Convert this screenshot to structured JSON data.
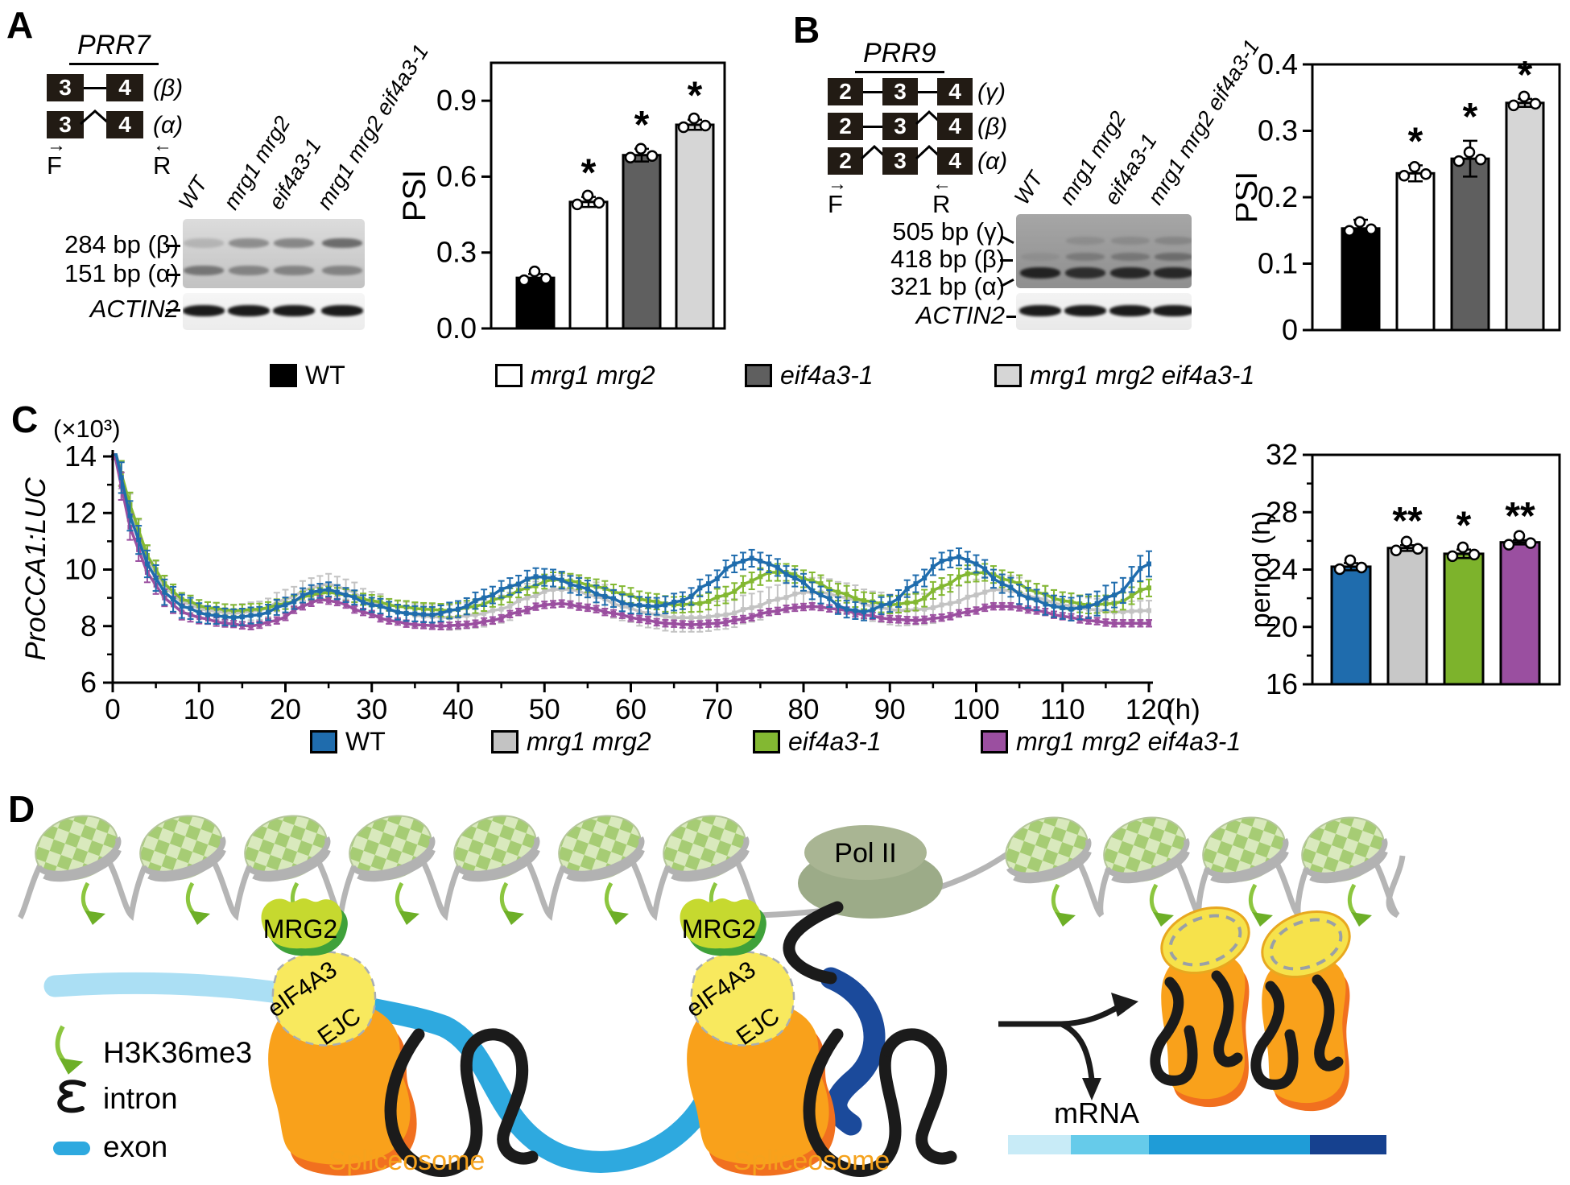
{
  "figure": {
    "panel_labels": {
      "A": "A",
      "B": "B",
      "C": "C",
      "D": "D"
    }
  },
  "panelA": {
    "gene": "PRR7",
    "isoform_rows": [
      {
        "exons": [
          "3",
          "4"
        ],
        "label": "(β)"
      },
      {
        "exons": [
          "3",
          "4"
        ],
        "label": "(α)"
      }
    ],
    "primer_f": "F",
    "primer_r": "R",
    "lanes": [
      "WT",
      "mrg1 mrg2",
      "eif4a3-1",
      "mrg1 mrg2 eif4a3-1"
    ],
    "band_labels": [
      "284 bp (β)",
      "151 bp (α)"
    ],
    "loading_control": "ACTIN2"
  },
  "panelB": {
    "gene": "PRR9",
    "isoform_rows": [
      {
        "exons": [
          "2",
          "3",
          "4"
        ],
        "label": "(γ)"
      },
      {
        "exons": [
          "2",
          "3",
          "4"
        ],
        "label": "(β)"
      },
      {
        "exons": [
          "2",
          "3",
          "4"
        ],
        "label": "(α)"
      }
    ],
    "primer_f": "F",
    "primer_r": "R",
    "lanes": [
      "WT",
      "mrg1 mrg2",
      "eif4a3-1",
      "mrg1 mrg2 eif4a3-1"
    ],
    "band_labels": [
      "505 bp (γ)",
      "418 bp (β)",
      "321 bp (α)"
    ],
    "loading_control": "ACTIN2"
  },
  "legend_ab": {
    "items": [
      {
        "label": "WT",
        "color": "#000000"
      },
      {
        "label": "mrg1 mrg2",
        "color": "#ffffff"
      },
      {
        "label": "eif4a3-1",
        "color": "#5f5f5f"
      },
      {
        "label": "mrg1 mrg2 eif4a3-1",
        "color": "#d6d6d6"
      }
    ]
  },
  "panelC": {
    "legend": {
      "items": [
        {
          "label": "WT",
          "color": "#1f6cad"
        },
        {
          "label": "mrg1 mrg2",
          "color": "#c3c3c3"
        },
        {
          "label": "eif4a3-1",
          "color": "#83b832"
        },
        {
          "label": "mrg1 mrg2 eif4a3-1",
          "color": "#9b4fa0"
        }
      ]
    }
  },
  "panelD": {
    "labels": {
      "mrg2": "MRG2",
      "eif4a3": "eIF4A3",
      "ejc": "EJC",
      "polii": "Pol II",
      "spliceosome1": "Spliceosome",
      "spliceosome2": "Spliceosome",
      "mrna": "mRNA"
    },
    "legend": [
      {
        "icon": "h3k36me3-arrow",
        "label": "H3K36me3"
      },
      {
        "icon": "intron-squiggle",
        "label": "intron"
      },
      {
        "icon": "exon-bar",
        "label": "exon"
      }
    ],
    "colors": {
      "spliceosome": "#f9a11b",
      "spliceosome_shadow": "#f1701f",
      "spliceosome_label": "#f5a21d",
      "mrg2": "#c6d92f",
      "mrg2_shadow": "#3fa13a",
      "eif4a3": "#f8e95e",
      "ejc_yellow": "#f6e24b",
      "polii_fill": "#a9b593",
      "polii_fill2": "#9cab88",
      "polii_stroke": "#50714b",
      "dna": "#b5b5b5",
      "nuc_light": "#d9e9bd",
      "nuc_mid": "#a6cc74",
      "h3k36me3": "#8cc63f",
      "h3k36me3_head": "#6daf27",
      "intron": "#1b1b1b",
      "exon_light": "#abdff4",
      "exon_mid": "#2ea9df",
      "exon_navy": "#1b4a9b",
      "mrna_seg1": "#c8ebf7",
      "mrna_seg2": "#66cbea",
      "mrna_seg3": "#1f9cd7",
      "mrna_seg4": "#16418f"
    }
  },
  "chart_data": [
    {
      "type": "bar",
      "id": "psiA",
      "title": "PRR7 PSI",
      "ylabel": "PSI",
      "ylim": [
        0,
        1.05
      ],
      "yticks": [
        0,
        0.3,
        0.6,
        0.9
      ],
      "categories": [
        "WT",
        "mrg1 mrg2",
        "eif4a3-1",
        "mrg1 mrg2 eif4a3-1"
      ],
      "values": [
        0.2,
        0.5,
        0.685,
        0.805
      ],
      "errors": [
        0.015,
        0.02,
        0.025,
        0.02
      ],
      "sig": [
        "",
        "*",
        "*",
        "*"
      ],
      "colors": [
        "#000000",
        "#ffffff",
        "#5f5f5f",
        "#d6d6d6"
      ]
    },
    {
      "type": "bar",
      "id": "psiB",
      "title": "PRR9 PSI",
      "ylabel": "PSI",
      "ylim": [
        0,
        0.4
      ],
      "yticks": [
        0,
        0.1,
        0.2,
        0.3,
        0.4
      ],
      "categories": [
        "WT",
        "mrg1 mrg2",
        "eif4a3-1",
        "mrg1 mrg2 eif4a3-1"
      ],
      "values": [
        0.153,
        0.236,
        0.258,
        0.342
      ],
      "errors": [
        0.013,
        0.012,
        0.027,
        0.006
      ],
      "sig": [
        "",
        "*",
        "*",
        "*"
      ],
      "colors": [
        "#000000",
        "#ffffff",
        "#5f5f5f",
        "#d6d6d6"
      ]
    },
    {
      "type": "line",
      "id": "luc",
      "ylabel": "ProCCA1:LUC",
      "y_unit": "(×10³)",
      "xlabel": "(h)",
      "xlim": [
        0,
        120
      ],
      "xticks": [
        0,
        10,
        20,
        30,
        40,
        50,
        60,
        70,
        80,
        90,
        100,
        110,
        120
      ],
      "ylim": [
        6,
        14
      ],
      "yticks": [
        6,
        8,
        10,
        12,
        14
      ],
      "series": [
        {
          "name": "mrg1 mrg2",
          "color": "#c3c3c3",
          "keypoints": [
            [
              0,
              14.5
            ],
            [
              2,
              12.2
            ],
            [
              4,
              10.4
            ],
            [
              6,
              9.4
            ],
            [
              8,
              8.85
            ],
            [
              11,
              8.55
            ],
            [
              14,
              8.45
            ],
            [
              17,
              8.55
            ],
            [
              20,
              8.95
            ],
            [
              23,
              9.35
            ],
            [
              25,
              9.5
            ],
            [
              27,
              9.3
            ],
            [
              30,
              8.85
            ],
            [
              33,
              8.5
            ],
            [
              36,
              8.35
            ],
            [
              39,
              8.3
            ],
            [
              42,
              8.4
            ],
            [
              45,
              8.6
            ],
            [
              48,
              9.0
            ],
            [
              51,
              9.3
            ],
            [
              53,
              9.3
            ],
            [
              56,
              9.05
            ],
            [
              59,
              8.7
            ],
            [
              62,
              8.45
            ],
            [
              65,
              8.3
            ],
            [
              68,
              8.3
            ],
            [
              71,
              8.4
            ],
            [
              74,
              8.65
            ],
            [
              77,
              8.95
            ],
            [
              80,
              9.2
            ],
            [
              82,
              9.2
            ],
            [
              85,
              9.0
            ],
            [
              88,
              8.7
            ],
            [
              91,
              8.55
            ],
            [
              94,
              8.6
            ],
            [
              97,
              8.8
            ],
            [
              100,
              9.1
            ],
            [
              102,
              9.3
            ],
            [
              104,
              9.25
            ],
            [
              107,
              9.0
            ],
            [
              110,
              8.75
            ],
            [
              113,
              8.6
            ],
            [
              116,
              8.5
            ],
            [
              120,
              8.55
            ]
          ],
          "err_keypoints": [
            [
              0,
              0.5
            ],
            [
              10,
              0.3
            ],
            [
              25,
              0.35
            ],
            [
              50,
              0.5
            ],
            [
              75,
              0.5
            ],
            [
              100,
              0.55
            ],
            [
              120,
              0.35
            ]
          ]
        },
        {
          "name": "eif4a3-1",
          "color": "#83b832",
          "keypoints": [
            [
              0,
              14.5
            ],
            [
              2,
              12.3
            ],
            [
              4,
              10.5
            ],
            [
              6,
              9.5
            ],
            [
              8,
              8.95
            ],
            [
              11,
              8.65
            ],
            [
              14,
              8.55
            ],
            [
              17,
              8.6
            ],
            [
              20,
              8.8
            ],
            [
              23,
              9.1
            ],
            [
              25,
              9.2
            ],
            [
              27,
              9.1
            ],
            [
              30,
              8.9
            ],
            [
              33,
              8.7
            ],
            [
              36,
              8.6
            ],
            [
              39,
              8.55
            ],
            [
              42,
              8.7
            ],
            [
              45,
              9.0
            ],
            [
              48,
              9.35
            ],
            [
              51,
              9.65
            ],
            [
              53,
              9.6
            ],
            [
              56,
              9.4
            ],
            [
              59,
              9.15
            ],
            [
              62,
              8.9
            ],
            [
              65,
              8.75
            ],
            [
              68,
              8.8
            ],
            [
              71,
              9.1
            ],
            [
              74,
              9.6
            ],
            [
              76,
              9.9
            ],
            [
              78,
              9.9
            ],
            [
              81,
              9.6
            ],
            [
              84,
              9.2
            ],
            [
              87,
              8.9
            ],
            [
              90,
              8.75
            ],
            [
              93,
              8.85
            ],
            [
              96,
              9.4
            ],
            [
              99,
              9.85
            ],
            [
              101,
              9.9
            ],
            [
              104,
              9.6
            ],
            [
              107,
              9.2
            ],
            [
              110,
              8.9
            ],
            [
              113,
              8.75
            ],
            [
              116,
              8.8
            ],
            [
              120,
              9.35
            ]
          ],
          "err_keypoints": [
            [
              0,
              0.45
            ],
            [
              10,
              0.2
            ],
            [
              25,
              0.2
            ],
            [
              50,
              0.25
            ],
            [
              76,
              0.3
            ],
            [
              100,
              0.3
            ],
            [
              120,
              0.3
            ]
          ]
        },
        {
          "name": "mrg1 mrg2 eif4a3-1",
          "color": "#9b4fa0",
          "keypoints": [
            [
              0,
              14.4
            ],
            [
              2,
              11.5
            ],
            [
              4,
              9.9
            ],
            [
              6,
              9.0
            ],
            [
              8,
              8.5
            ],
            [
              10,
              8.3
            ],
            [
              13,
              8.1
            ],
            [
              16,
              8.0
            ],
            [
              19,
              8.2
            ],
            [
              22,
              8.7
            ],
            [
              24,
              8.95
            ],
            [
              26,
              8.85
            ],
            [
              29,
              8.5
            ],
            [
              32,
              8.2
            ],
            [
              35,
              8.05
            ],
            [
              38,
              8.0
            ],
            [
              41,
              8.05
            ],
            [
              44,
              8.2
            ],
            [
              47,
              8.5
            ],
            [
              50,
              8.75
            ],
            [
              52,
              8.8
            ],
            [
              55,
              8.65
            ],
            [
              58,
              8.45
            ],
            [
              61,
              8.25
            ],
            [
              64,
              8.1
            ],
            [
              67,
              8.05
            ],
            [
              70,
              8.1
            ],
            [
              73,
              8.25
            ],
            [
              76,
              8.5
            ],
            [
              79,
              8.65
            ],
            [
              81,
              8.7
            ],
            [
              84,
              8.6
            ],
            [
              87,
              8.4
            ],
            [
              90,
              8.25
            ],
            [
              93,
              8.2
            ],
            [
              96,
              8.3
            ],
            [
              99,
              8.5
            ],
            [
              102,
              8.7
            ],
            [
              104,
              8.7
            ],
            [
              107,
              8.55
            ],
            [
              110,
              8.35
            ],
            [
              113,
              8.2
            ],
            [
              116,
              8.1
            ],
            [
              120,
              8.1
            ]
          ],
          "err_keypoints": [
            [
              0,
              0.5
            ],
            [
              6,
              0.3
            ],
            [
              14,
              0.12
            ],
            [
              50,
              0.12
            ],
            [
              120,
              0.12
            ]
          ]
        },
        {
          "name": "WT",
          "color": "#1f6cad",
          "keypoints": [
            [
              0,
              14.6
            ],
            [
              2,
              11.9
            ],
            [
              4,
              10.2
            ],
            [
              6,
              9.2
            ],
            [
              8,
              8.7
            ],
            [
              11,
              8.4
            ],
            [
              14,
              8.3
            ],
            [
              17,
              8.4
            ],
            [
              20,
              8.75
            ],
            [
              23,
              9.2
            ],
            [
              25,
              9.3
            ],
            [
              27,
              9.1
            ],
            [
              30,
              8.75
            ],
            [
              34,
              8.45
            ],
            [
              37,
              8.4
            ],
            [
              40,
              8.6
            ],
            [
              43,
              9.0
            ],
            [
              46,
              9.4
            ],
            [
              49,
              9.75
            ],
            [
              51,
              9.7
            ],
            [
              54,
              9.4
            ],
            [
              57,
              9.05
            ],
            [
              60,
              8.75
            ],
            [
              63,
              8.7
            ],
            [
              66,
              8.9
            ],
            [
              69,
              9.5
            ],
            [
              72,
              10.2
            ],
            [
              74,
              10.4
            ],
            [
              76,
              10.2
            ],
            [
              79,
              9.7
            ],
            [
              82,
              9.1
            ],
            [
              85,
              8.6
            ],
            [
              87,
              8.5
            ],
            [
              90,
              8.8
            ],
            [
              93,
              9.5
            ],
            [
              96,
              10.3
            ],
            [
              98,
              10.45
            ],
            [
              100,
              10.2
            ],
            [
              103,
              9.5
            ],
            [
              106,
              9.0
            ],
            [
              109,
              8.7
            ],
            [
              111,
              8.6
            ],
            [
              113,
              8.7
            ],
            [
              116,
              9.1
            ],
            [
              120,
              10.2
            ]
          ],
          "err_keypoints": [
            [
              0,
              0.55
            ],
            [
              6,
              0.45
            ],
            [
              12,
              0.3
            ],
            [
              24,
              0.25
            ],
            [
              48,
              0.3
            ],
            [
              72,
              0.3
            ],
            [
              96,
              0.3
            ],
            [
              120,
              0.45
            ]
          ]
        }
      ]
    },
    {
      "type": "bar",
      "id": "period",
      "ylabel": "period (h)",
      "ylim": [
        16,
        32
      ],
      "yticks": [
        16,
        20,
        24,
        28,
        32
      ],
      "categories": [
        "WT",
        "mrg1 mrg2",
        "eif4a3-1",
        "mrg1 mrg2 eif4a3-1"
      ],
      "values": [
        24.2,
        25.5,
        25.1,
        25.9
      ],
      "errors": [
        0.25,
        0.2,
        0.3,
        0.15
      ],
      "sig": [
        "",
        "**",
        "*",
        "**"
      ],
      "colors": [
        "#1f6cad",
        "#c8c8c8",
        "#7db32c",
        "#9a4fa0"
      ]
    }
  ]
}
